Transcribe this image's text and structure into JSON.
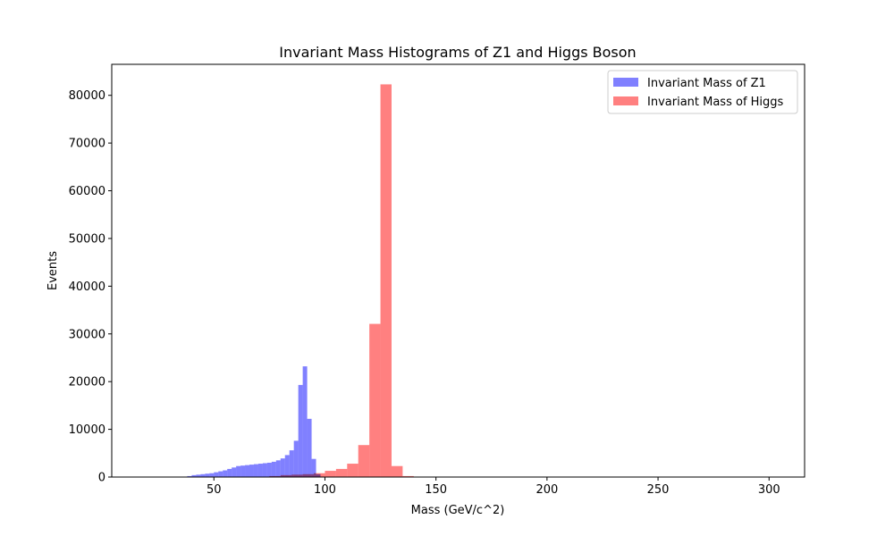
{
  "chart_data": {
    "type": "bar",
    "title": "Invariant Mass Histograms of Z1 and Higgs Boson",
    "xlabel": "Mass (GeV/c^2)",
    "ylabel": "Events",
    "xlim": [
      4,
      316
    ],
    "ylim": [
      0,
      86500
    ],
    "xticks": [
      50,
      100,
      150,
      200,
      250,
      300
    ],
    "yticks": [
      0,
      10000,
      20000,
      30000,
      40000,
      50000,
      60000,
      70000,
      80000
    ],
    "legend_position": "top-right",
    "grid": false,
    "series": [
      {
        "name": "Invariant Mass of Z1",
        "color": "#8080ff",
        "bins": [
          [
            38,
            40,
            200
          ],
          [
            40,
            42,
            400
          ],
          [
            42,
            44,
            500
          ],
          [
            44,
            46,
            600
          ],
          [
            46,
            48,
            700
          ],
          [
            48,
            50,
            800
          ],
          [
            50,
            52,
            1000
          ],
          [
            52,
            54,
            1200
          ],
          [
            54,
            56,
            1400
          ],
          [
            56,
            58,
            1700
          ],
          [
            58,
            60,
            2000
          ],
          [
            60,
            62,
            2300
          ],
          [
            62,
            64,
            2400
          ],
          [
            64,
            66,
            2500
          ],
          [
            66,
            68,
            2600
          ],
          [
            68,
            70,
            2700
          ],
          [
            70,
            72,
            2800
          ],
          [
            72,
            74,
            2900
          ],
          [
            74,
            76,
            3000
          ],
          [
            76,
            78,
            3200
          ],
          [
            78,
            80,
            3500
          ],
          [
            80,
            82,
            3900
          ],
          [
            82,
            84,
            4600
          ],
          [
            84,
            86,
            5600
          ],
          [
            86,
            88,
            7600
          ],
          [
            88,
            90,
            19300
          ],
          [
            90,
            92,
            23200
          ],
          [
            92,
            94,
            12200
          ],
          [
            94,
            96,
            3800
          ],
          [
            96,
            98,
            600
          ]
        ]
      },
      {
        "name": "Invariant Mass of Higgs",
        "color": "#ff8080",
        "bins": [
          [
            75,
            80,
            200
          ],
          [
            80,
            85,
            400
          ],
          [
            85,
            90,
            500
          ],
          [
            90,
            95,
            600
          ],
          [
            95,
            100,
            800
          ],
          [
            100,
            105,
            1300
          ],
          [
            105,
            110,
            1700
          ],
          [
            110,
            115,
            2800
          ],
          [
            115,
            120,
            6700
          ],
          [
            120,
            125,
            32100
          ],
          [
            125,
            130,
            82300
          ],
          [
            130,
            135,
            2300
          ],
          [
            135,
            140,
            200
          ]
        ]
      }
    ]
  }
}
